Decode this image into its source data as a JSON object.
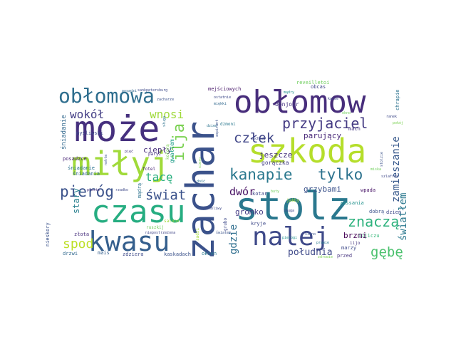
{
  "words": [
    {
      "text": "obłomow",
      "color": "#472d7b",
      "role": "large"
    },
    {
      "text": "zachar",
      "color": "#3b528b",
      "role": "large"
    },
    {
      "text": "może",
      "color": "#46307e",
      "role": "large"
    },
    {
      "text": "miłyj",
      "color": "#a0da39",
      "role": "large"
    },
    {
      "text": "szkoda",
      "color": "#b5de2b",
      "role": "large"
    },
    {
      "text": "stolz",
      "color": "#2a788e",
      "role": "large"
    },
    {
      "text": "czasu",
      "color": "#26ad81",
      "role": "large"
    },
    {
      "text": "kwasu",
      "color": "#355f8d",
      "role": "large"
    },
    {
      "text": "nalej",
      "color": "#3e4989",
      "role": "large"
    },
    {
      "text": "obłomowa",
      "color": "#2e6e8e",
      "role": "medium"
    },
    {
      "text": "przyjaciel",
      "color": "#443a83",
      "role": "medium"
    },
    {
      "text": "kanapie",
      "color": "#2a788e",
      "role": "medium"
    },
    {
      "text": "tylko",
      "color": "#2c728e",
      "role": "medium"
    },
    {
      "text": "pieróg",
      "color": "#3b528b",
      "role": "medium"
    },
    {
      "text": "ilja",
      "color": "#7ad151",
      "role": "medium"
    },
    {
      "text": "człek",
      "color": "#404688",
      "role": "medium"
    },
    {
      "text": "znaczą",
      "color": "#2db27d",
      "role": "medium"
    },
    {
      "text": "spod",
      "color": "#bddf26",
      "role": "medium"
    },
    {
      "text": "gębę",
      "color": "#4ac16d",
      "role": "medium"
    },
    {
      "text": "świat",
      "color": "#3b528b",
      "role": "medium"
    },
    {
      "text": "wokół",
      "color": "#433e85",
      "role": "small"
    },
    {
      "text": "wnosi",
      "color": "#9fda3a",
      "role": "small"
    },
    {
      "text": "tacę",
      "color": "#29af7f",
      "role": "small"
    },
    {
      "text": "dwór",
      "color": "#471063",
      "role": "small"
    },
    {
      "text": "zamieszanie",
      "color": "#38598c",
      "role": "small"
    },
    {
      "text": "światłem",
      "color": "#2a788e",
      "role": "small"
    },
    {
      "text": "południa",
      "color": "#3e4989",
      "role": "small"
    },
    {
      "text": "gdzie",
      "color": "#2e6e8e",
      "role": "small"
    },
    {
      "text": "gromko",
      "color": "#443a83",
      "role": "small"
    },
    {
      "text": "stary",
      "color": "#277f8e",
      "role": "small"
    },
    {
      "text": "jeszcze",
      "color": "#46327e",
      "role": "small"
    },
    {
      "text": "parujący",
      "color": "#482878",
      "role": "small"
    },
    {
      "text": "ciepły",
      "color": "#472d7b",
      "role": "small"
    },
    {
      "text": "grzybami",
      "color": "#3b528b",
      "role": "small"
    },
    {
      "text": "brzmi",
      "color": "#440154",
      "role": "small"
    },
    {
      "text": "śniadanie",
      "color": "#31688e",
      "role": "small"
    },
    {
      "text": "gorączka",
      "color": "#433e85",
      "role": "tiny"
    },
    {
      "text": "bonjour",
      "color": "#463480",
      "role": "tiny"
    },
    {
      "text": "mejściowych",
      "color": "#48186a",
      "role": "tiny"
    },
    {
      "text": "gwałtem",
      "color": "#1f9e89",
      "role": "tiny"
    },
    {
      "text": "posadzce",
      "color": "#482475",
      "role": "tiny"
    },
    {
      "text": "myśliwski",
      "color": "#3e4989",
      "role": "tiny"
    },
    {
      "text": "śniadania",
      "color": "#31688e",
      "role": "tiny"
    },
    {
      "text": "śniadanie",
      "color": "#2c728e",
      "role": "tiny"
    },
    {
      "text": "kotar",
      "color": "#3f4788",
      "role": "tiny"
    },
    {
      "text": "dobrą",
      "color": "#3b528b",
      "role": "tiny"
    },
    {
      "text": "dzień",
      "color": "#3e4989",
      "role": "tiny"
    },
    {
      "text": "iijiczu",
      "color": "#35b779",
      "role": "tiny"
    },
    {
      "text": "złota",
      "color": "#472f7d",
      "role": "tiny"
    },
    {
      "text": "nieskory",
      "color": "#3b528b",
      "role": "tiny"
    },
    {
      "text": "drzwi",
      "color": "#31688e",
      "role": "tiny"
    },
    {
      "text": "mais",
      "color": "#355f8d",
      "role": "tiny"
    },
    {
      "text": "zdziera",
      "color": "#3e4a89",
      "role": "tiny"
    },
    {
      "text": "kaskadach",
      "color": "#3b528b",
      "role": "tiny"
    },
    {
      "text": "okien",
      "color": "#2a788e",
      "role": "tiny"
    },
    {
      "text": "przed",
      "color": "#46337f",
      "role": "tiny"
    },
    {
      "text": "marzy",
      "color": "#3e4989",
      "role": "tiny"
    },
    {
      "text": "zassania",
      "color": "#21918c",
      "role": "tiny"
    },
    {
      "text": "wpada",
      "color": "#481467",
      "role": "tiny"
    },
    {
      "text": "kryje",
      "color": "#3e4989",
      "role": "tiny"
    },
    {
      "text": "obcas",
      "color": "#3f4788",
      "role": "tiny"
    },
    {
      "text": "chrapie",
      "color": "#2c728e",
      "role": "tiny"
    },
    {
      "text": "mach",
      "color": "#453781",
      "role": "tiny"
    },
    {
      "text": "reveilletoi",
      "color": "#6ccd5a",
      "role": "tiny"
    },
    {
      "text": "dzmoni",
      "color": "#2a788e",
      "role": "tiny"
    },
    {
      "text": "grubo",
      "color": "#3e4989",
      "role": "tiny"
    },
    {
      "text": "iijo",
      "color": "#453781",
      "role": "tiny"
    },
    {
      "text": "jakby",
      "color": "#a0da39",
      "role": "tiny"
    },
    {
      "text": "paryż",
      "color": "#46307e",
      "role": "tiny"
    },
    {
      "text": "kołdrą",
      "color": "#7ad151",
      "role": "tiny"
    },
    {
      "text": "mądrą",
      "color": "#2c728e",
      "role": "tiny"
    },
    {
      "text": "saloon",
      "color": "#a0da39",
      "role": "tiny"
    },
    {
      "text": "niepostrzeżona",
      "color": "#404688",
      "role": "tiny"
    },
    {
      "text": "sadzi",
      "color": "#a5db36",
      "role": "tiny"
    },
    {
      "text": "posadzi",
      "color": "#31688e",
      "role": "tiny"
    },
    {
      "text": "sankpetersburg",
      "color": "#3e4989",
      "role": "tiny"
    },
    {
      "text": "ruszkij",
      "color": "#6ece58",
      "role": "tiny"
    },
    {
      "text": "fotel",
      "color": "#482475",
      "role": "tiny"
    },
    {
      "text": "pięć",
      "color": "#453781",
      "role": "tiny"
    },
    {
      "text": "nokta",
      "color": "#3b528b",
      "role": "tiny"
    },
    {
      "text": "proste",
      "color": "#46307e",
      "role": "tiny"
    },
    {
      "text": "rzadko",
      "color": "#3e4989",
      "role": "tiny"
    },
    {
      "text": "światem",
      "color": "#3b528b",
      "role": "tiny"
    },
    {
      "text": "osobliwy",
      "color": "#3e4989",
      "role": "tiny"
    },
    {
      "text": "dość",
      "color": "#2c728e",
      "role": "tiny"
    },
    {
      "text": "sierp",
      "color": "#7ad151",
      "role": "tiny"
    },
    {
      "text": "ostatnie",
      "color": "#3e4989",
      "role": "tiny"
    },
    {
      "text": "miękki",
      "color": "#31688e",
      "role": "tiny"
    },
    {
      "text": "dzień",
      "color": "#2c728e",
      "role": "tiny"
    },
    {
      "text": "aspirant",
      "color": "#3b528b",
      "role": "tiny"
    },
    {
      "text": "wschody",
      "color": "#3e4989",
      "role": "tiny"
    },
    {
      "text": "buty",
      "color": "#6ece58",
      "role": "tiny"
    },
    {
      "text": "smuga",
      "color": "#3e4989",
      "role": "tiny"
    },
    {
      "text": "pierogi",
      "color": "#21918c",
      "role": "tiny"
    },
    {
      "text": "sieno",
      "color": "#3b528b",
      "role": "tiny"
    },
    {
      "text": "prawie",
      "color": "#2a788e",
      "role": "tiny"
    },
    {
      "text": "zdrowie",
      "color": "#7ad151",
      "role": "tiny"
    },
    {
      "text": "szlafrok",
      "color": "#3e4989",
      "role": "tiny"
    },
    {
      "text": "miska",
      "color": "#6ece58",
      "role": "tiny"
    },
    {
      "text": "stolzie",
      "color": "#3b528b",
      "role": "tiny"
    },
    {
      "text": "ranek",
      "color": "#3e4989",
      "role": "tiny"
    },
    {
      "text": "pokój",
      "color": "#7ad151",
      "role": "tiny"
    },
    {
      "text": "okno",
      "color": "#6ece58",
      "role": "tiny"
    },
    {
      "text": "kasze",
      "color": "#3e4989",
      "role": "tiny"
    },
    {
      "text": "mądry",
      "color": "#21918c",
      "role": "tiny"
    },
    {
      "text": "zacharze",
      "color": "#3b528b",
      "role": "tiny"
    },
    {
      "text": "sługa",
      "color": "#2c728e",
      "role": "tiny"
    }
  ]
}
